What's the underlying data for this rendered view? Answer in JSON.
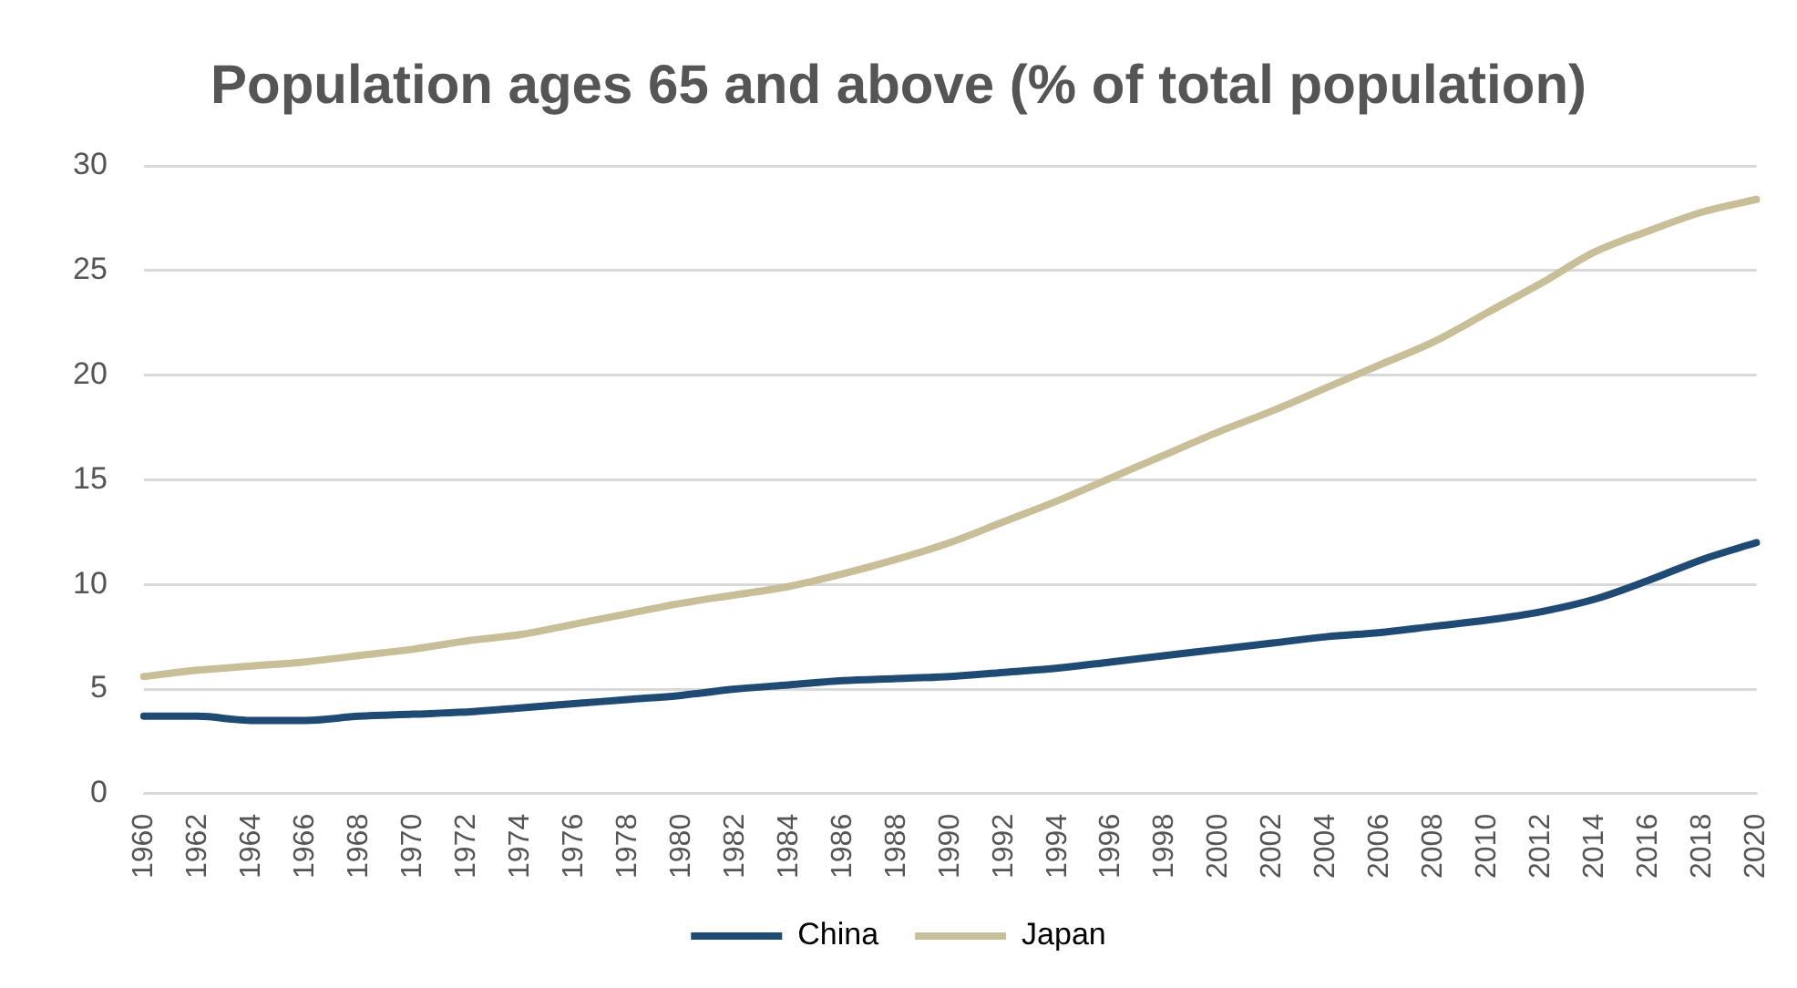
{
  "chart_data": {
    "type": "line",
    "title": "Population ages 65 and above (% of total population)",
    "categories": [
      "1960",
      "1962",
      "1964",
      "1966",
      "1968",
      "1970",
      "1972",
      "1974",
      "1976",
      "1978",
      "1980",
      "1982",
      "1984",
      "1986",
      "1988",
      "1990",
      "1992",
      "1994",
      "1996",
      "1998",
      "2000",
      "2002",
      "2004",
      "2006",
      "2008",
      "2010",
      "2012",
      "2014",
      "2016",
      "2018",
      "2020"
    ],
    "series": [
      {
        "name": "China",
        "color": "#1f4a73",
        "values": [
          3.7,
          3.7,
          3.5,
          3.5,
          3.7,
          3.8,
          3.9,
          4.1,
          4.3,
          4.5,
          4.7,
          5.0,
          5.2,
          5.4,
          5.5,
          5.6,
          5.8,
          6.0,
          6.3,
          6.6,
          6.9,
          7.2,
          7.5,
          7.7,
          8.0,
          8.3,
          8.7,
          9.3,
          10.2,
          11.2,
          12.0
        ]
      },
      {
        "name": "Japan",
        "color": "#c8be98",
        "values": [
          5.6,
          5.9,
          6.1,
          6.3,
          6.6,
          6.9,
          7.3,
          7.6,
          8.1,
          8.6,
          9.1,
          9.5,
          9.9,
          10.5,
          11.2,
          12.0,
          13.0,
          14.0,
          15.1,
          16.2,
          17.3,
          18.3,
          19.4,
          20.5,
          21.6,
          23.0,
          24.4,
          25.9,
          26.9,
          27.8,
          28.4
        ]
      }
    ],
    "ylim": [
      0,
      30
    ],
    "yticks": [
      0,
      5,
      10,
      15,
      20,
      25,
      30
    ],
    "grid": "y",
    "legend": "bottom",
    "marker": "none",
    "line_style": "solid"
  }
}
